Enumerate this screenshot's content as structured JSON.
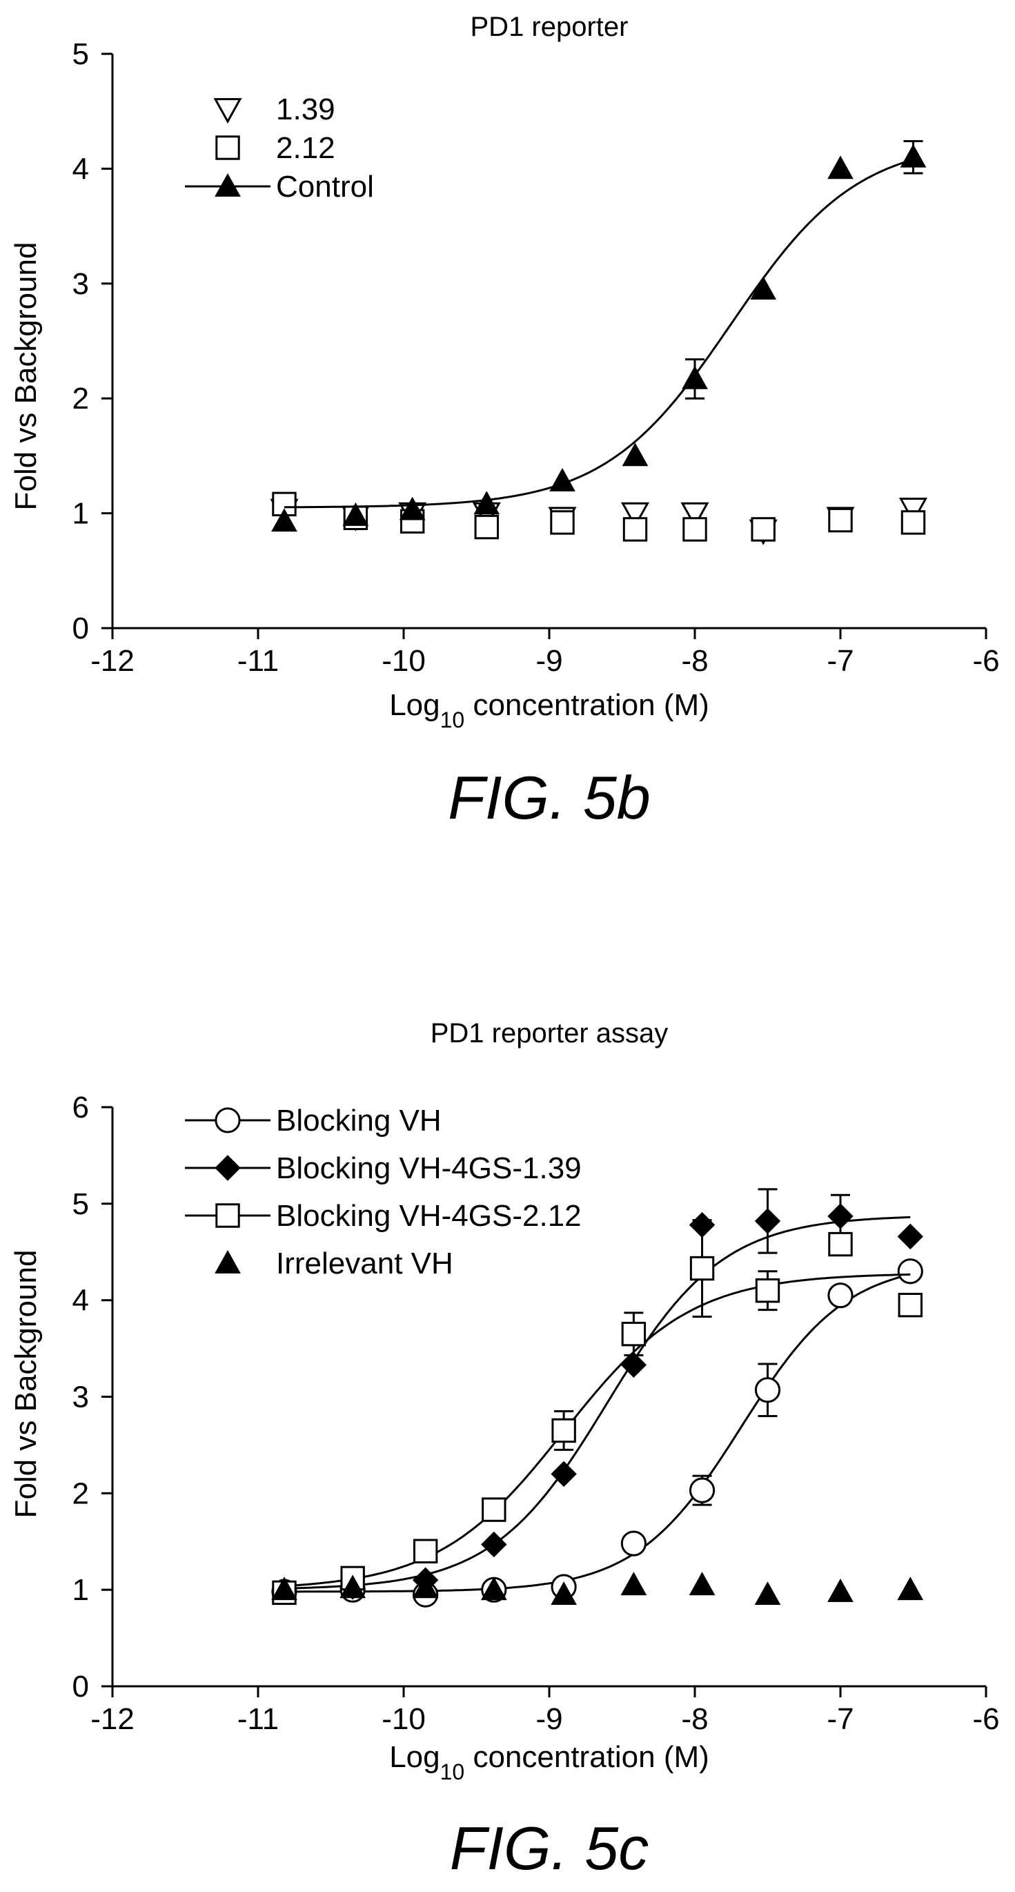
{
  "chart_data": [
    {
      "type": "scatter",
      "title": "PD1 reporter",
      "xlabel": {
        "prefix": "Log",
        "subscript": "10",
        "suffix": " concentration (M)"
      },
      "ylabel": "Fold vs Background",
      "xlim": [
        -12,
        -6
      ],
      "ylim": [
        0,
        5
      ],
      "xticks": [
        "-12",
        "-11",
        "-10",
        "-9",
        "-8",
        "-7",
        "-6"
      ],
      "yticks": [
        "0",
        "1",
        "2",
        "3",
        "4",
        "5"
      ],
      "legend_position": "top-left",
      "caption": "FIG. 5b",
      "series": [
        {
          "name": "1.39",
          "marker": "triangle-down-open",
          "fit": false,
          "x": [
            -10.82,
            -10.33,
            -9.94,
            -9.43,
            -8.91,
            -8.41,
            -8.0,
            -7.53,
            -7.0,
            -6.5
          ],
          "y": [
            1.03,
            0.97,
            1.0,
            1.0,
            0.96,
            1.0,
            1.0,
            0.85,
            0.96,
            1.04
          ]
        },
        {
          "name": "2.12",
          "marker": "square-open",
          "fit": false,
          "x": [
            -10.82,
            -10.33,
            -9.94,
            -9.43,
            -8.91,
            -8.41,
            -8.0,
            -7.53,
            -7.0,
            -6.5
          ],
          "y": [
            1.08,
            0.96,
            0.93,
            0.88,
            0.92,
            0.86,
            0.86,
            0.86,
            0.94,
            0.92
          ]
        },
        {
          "name": "Control",
          "marker": "triangle-up-filled",
          "fit": true,
          "x": [
            -10.82,
            -10.33,
            -9.94,
            -9.43,
            -8.91,
            -8.41,
            -8.0,
            -7.53,
            -7.0,
            -6.5
          ],
          "y": [
            0.93,
            0.98,
            1.03,
            1.08,
            1.28,
            1.5,
            2.17,
            2.95,
            4.0,
            4.1
          ],
          "err": [
            0,
            0,
            0,
            0,
            0,
            0,
            0.17,
            0,
            0,
            0.14
          ],
          "fit_params": {
            "bottom": 1.05,
            "top": 4.25,
            "logEC50": -7.75,
            "hill": 1.0
          }
        }
      ]
    },
    {
      "type": "scatter",
      "title": "PD1 reporter assay",
      "xlabel": {
        "prefix": "Log",
        "subscript": "10",
        "suffix": " concentration (M)"
      },
      "ylabel": "Fold vs Background",
      "xlim": [
        -12,
        -6
      ],
      "ylim": [
        0,
        6
      ],
      "xticks": [
        "-12",
        "-11",
        "-10",
        "-9",
        "-8",
        "-7",
        "-6"
      ],
      "yticks": [
        "0",
        "1",
        "2",
        "3",
        "4",
        "5",
        "6"
      ],
      "legend_position": "top-left",
      "caption": "FIG. 5c",
      "series": [
        {
          "name": "Blocking VH",
          "marker": "circle-open",
          "fit": true,
          "x": [
            -10.82,
            -10.35,
            -9.85,
            -9.38,
            -8.9,
            -8.42,
            -7.95,
            -7.5,
            -7.0,
            -6.52
          ],
          "y": [
            0.98,
            1.0,
            0.95,
            1.0,
            1.03,
            1.48,
            2.03,
            3.07,
            4.05,
            4.3
          ],
          "err": [
            0,
            0,
            0,
            0,
            0,
            0,
            0.15,
            0.27,
            0,
            0
          ],
          "fit_params": {
            "bottom": 0.98,
            "top": 4.4,
            "logEC50": -7.68,
            "hill": 1.2
          }
        },
        {
          "name": "Blocking VH-4GS-1.39",
          "marker": "diamond-filled",
          "fit": true,
          "x": [
            -10.82,
            -10.35,
            -9.85,
            -9.38,
            -8.9,
            -8.42,
            -7.95,
            -7.5,
            -7.0,
            -6.52
          ],
          "y": [
            0.98,
            1.03,
            1.1,
            1.47,
            2.2,
            3.33,
            4.78,
            4.82,
            4.87,
            4.66
          ],
          "err": [
            0,
            0,
            0,
            0,
            0,
            0,
            0,
            0.33,
            0.22,
            0
          ],
          "fit_params": {
            "bottom": 1.0,
            "top": 4.88,
            "logEC50": -8.6,
            "hill": 1.1
          }
        },
        {
          "name": "Blocking VH-4GS-2.12",
          "marker": "square-open",
          "fit": true,
          "x": [
            -10.82,
            -10.35,
            -9.85,
            -9.38,
            -8.9,
            -8.42,
            -7.95,
            -7.5,
            -7.0,
            -6.52
          ],
          "y": [
            0.97,
            1.12,
            1.4,
            1.83,
            2.65,
            3.65,
            4.33,
            4.1,
            4.58,
            3.95
          ],
          "err": [
            0,
            0,
            0,
            0.1,
            0.2,
            0.22,
            0.5,
            0.2,
            0,
            0
          ],
          "fit_params": {
            "bottom": 1.0,
            "top": 4.28,
            "logEC50": -8.9,
            "hill": 1.0
          }
        },
        {
          "name": "Irrelevant VH",
          "marker": "triangle-up-filled",
          "fit": false,
          "x": [
            -10.82,
            -10.35,
            -9.85,
            -9.38,
            -8.9,
            -8.42,
            -7.95,
            -7.5,
            -7.0,
            -6.52
          ],
          "y": [
            1.0,
            1.02,
            1.02,
            1.0,
            0.95,
            1.05,
            1.05,
            0.95,
            0.98,
            1.0
          ]
        }
      ]
    }
  ]
}
